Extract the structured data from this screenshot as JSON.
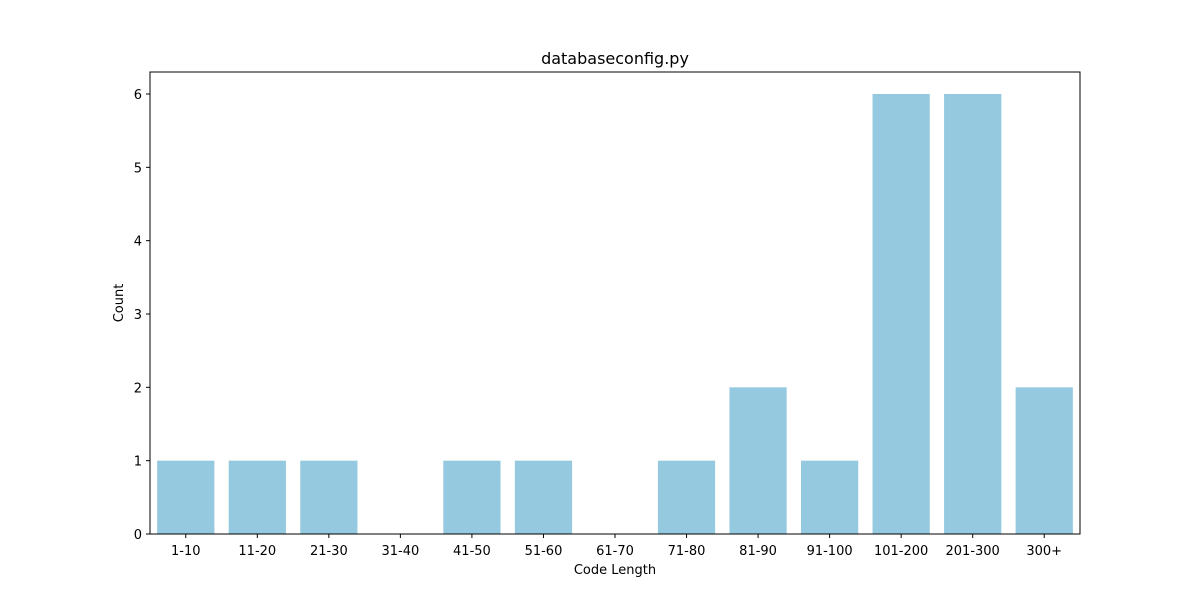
{
  "chart_data": {
    "type": "bar",
    "title": "databaseconfig.py",
    "xlabel": "Code Length",
    "ylabel": "Count",
    "categories": [
      "1-10",
      "11-20",
      "21-30",
      "31-40",
      "41-50",
      "51-60",
      "61-70",
      "71-80",
      "81-90",
      "91-100",
      "101-200",
      "201-300",
      "300+"
    ],
    "values": [
      1,
      1,
      1,
      0,
      1,
      1,
      0,
      1,
      2,
      1,
      6,
      6,
      2
    ],
    "ylim": [
      0,
      6.3
    ],
    "yticks": [
      0,
      1,
      2,
      3,
      4,
      5,
      6
    ],
    "bar_color": "#95c9df",
    "grid": false,
    "legend": false
  }
}
